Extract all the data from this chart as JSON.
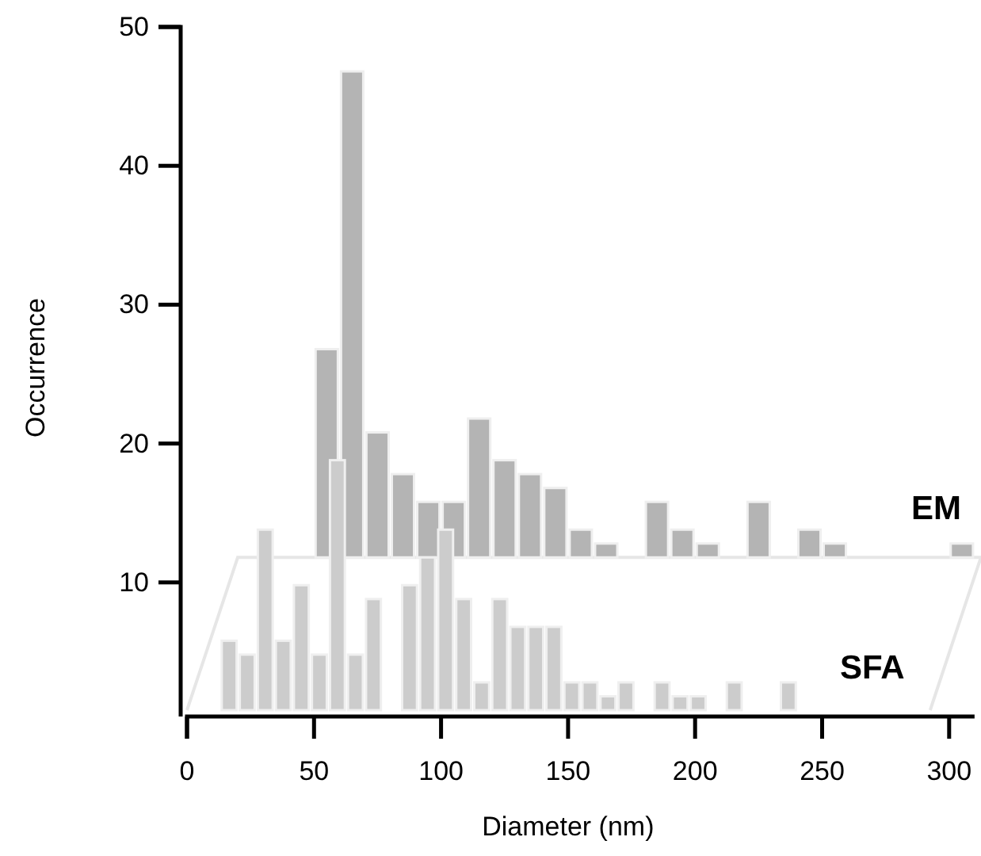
{
  "chart_data": {
    "type": "bar",
    "xlabel": "Diameter (nm)",
    "ylabel": "Occurrence",
    "xlim": [
      0,
      310
    ],
    "xticks": [
      0,
      50,
      100,
      150,
      200,
      250,
      300
    ],
    "ylim": [
      0.8,
      50
    ],
    "yticks": [
      10,
      20,
      30,
      40,
      50
    ],
    "series": [
      {
        "name": "EM",
        "color": "#b4b4b4",
        "x": [
          55,
          65,
          75,
          85,
          95,
          105,
          115,
          125,
          135,
          145,
          155,
          165,
          175,
          185,
          195,
          205,
          215,
          225,
          235,
          245,
          255,
          265,
          275,
          285,
          295,
          305
        ],
        "base": [
          11.8,
          11.8,
          11.8,
          11.8,
          11.8,
          11.8,
          11.8,
          11.8,
          11.8,
          11.8,
          11.8,
          11.8,
          null,
          11.8,
          11.8,
          11.8,
          null,
          11.8,
          null,
          11.8,
          11.8,
          null,
          null,
          null,
          null,
          11.8
        ],
        "values": [
          15,
          35,
          9,
          6,
          4,
          4,
          10,
          7,
          6,
          5,
          2,
          1,
          null,
          4,
          2,
          1,
          null,
          4,
          null,
          2,
          1,
          null,
          null,
          null,
          null,
          1
        ]
      },
      {
        "name": "SFA",
        "color": "#cccccc",
        "x": [
          16.6,
          23.7,
          30.8,
          37.9,
          45,
          52.1,
          59.2,
          66.3,
          73.4,
          80.5,
          87.6,
          94.7,
          101.8,
          108.9,
          116,
          123.1,
          130.2,
          137.3,
          144.4,
          151.5,
          158.6,
          165.7,
          172.8,
          179.9,
          187,
          194.1,
          201.2,
          208.3,
          215.4,
          222.5,
          229.6,
          236.7
        ],
        "base": [
          0.8,
          0.8,
          0.8,
          0.8,
          0.8,
          0.8,
          0.8,
          0.8,
          0.8,
          null,
          0.8,
          0.8,
          0.8,
          0.8,
          0.8,
          0.8,
          0.8,
          0.8,
          0.8,
          0.8,
          0.8,
          0.8,
          0.8,
          null,
          0.8,
          0.8,
          0.8,
          null,
          0.8,
          null,
          null,
          0.8
        ],
        "values": [
          5,
          4,
          13,
          5,
          9,
          4,
          18,
          4,
          8,
          null,
          9,
          11,
          13,
          8,
          2,
          8,
          6,
          6,
          6,
          2,
          2,
          1,
          2,
          null,
          2,
          1,
          1,
          null,
          2,
          null,
          null,
          2
        ]
      }
    ]
  }
}
